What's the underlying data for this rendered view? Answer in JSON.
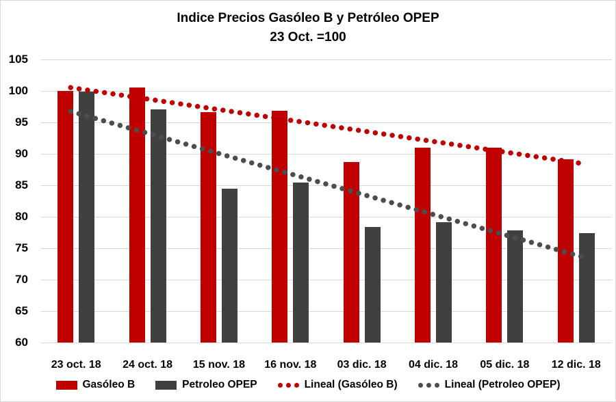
{
  "header": {
    "title": "Indice Precios Gasóleo B y Petróleo OPEP",
    "subtitle": "23 Oct. =100"
  },
  "chart_data": {
    "type": "bar",
    "title": "Indice Precios Gasóleo B y Petróleo OPEP",
    "subtitle": "23 Oct. =100",
    "categories": [
      "23 oct. 18",
      "24 oct. 18",
      "15 nov. 18",
      "16 nov. 18",
      "03 dic. 18",
      "04 dic. 18",
      "05 dic. 18",
      "12 dic. 18"
    ],
    "series": [
      {
        "name": "Gasóleo B",
        "color": "#c00000",
        "values": [
          100.0,
          100.5,
          96.6,
          96.9,
          88.7,
          91.0,
          91.0,
          89.1
        ]
      },
      {
        "name": "Petroleo OPEP",
        "color": "#404040",
        "values": [
          99.9,
          97.1,
          84.5,
          85.4,
          78.4,
          79.1,
          77.8,
          77.4
        ]
      }
    ],
    "trendlines": [
      {
        "name": "Lineal (Gasóleo B)",
        "color": "#c00000",
        "start": 100.4,
        "end": 88.6
      },
      {
        "name": "Lineal (Petroleo OPEP)",
        "color": "#4d4d4d",
        "start": 96.5,
        "end": 73.9
      }
    ],
    "yticks": [
      105,
      100,
      95,
      90,
      85,
      80,
      75,
      70,
      65,
      60
    ],
    "ylim": [
      60,
      105
    ],
    "grid": true,
    "legend_position": "bottom",
    "gridline_color": "#d9d9d9",
    "xlabel": "",
    "ylabel": ""
  },
  "legend": {
    "items": [
      {
        "label": "Gasóleo B",
        "swatch": "bar",
        "color": "#c00000"
      },
      {
        "label": "Petroleo OPEP",
        "swatch": "bar",
        "color": "#404040"
      },
      {
        "label": "Lineal (Gasóleo B)",
        "swatch": "dots",
        "color": "#c00000"
      },
      {
        "label": "Lineal (Petroleo OPEP)",
        "swatch": "dots",
        "color": "#4d4d4d"
      }
    ]
  }
}
